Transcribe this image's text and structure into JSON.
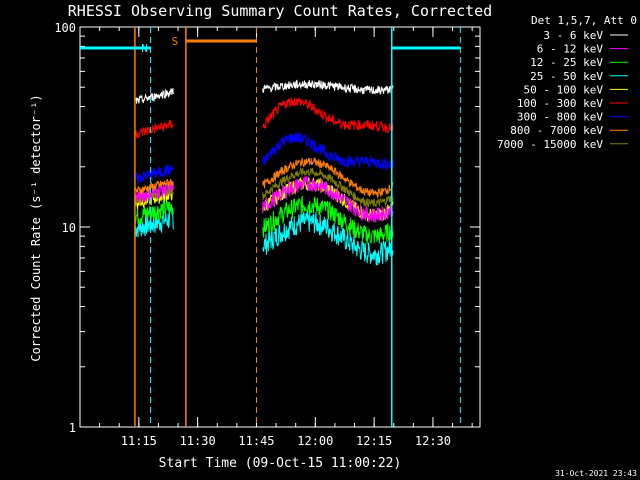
{
  "chart_data": {
    "type": "line",
    "title": "RHESSI Observing Summary Count Rates, Corrected",
    "xlabel": "Start Time (09-Oct-15 11:00:22)",
    "ylabel": "Corrected Count Rate (s⁻¹ detector⁻¹)",
    "y_scale": "log",
    "ylim": [
      1,
      100
    ],
    "xlim_minutes": [
      0,
      102
    ],
    "x_ticks": [
      {
        "label": "11:15",
        "minute": 15
      },
      {
        "label": "11:30",
        "minute": 30
      },
      {
        "label": "11:45",
        "minute": 45
      },
      {
        "label": "12:00",
        "minute": 60
      },
      {
        "label": "12:15",
        "minute": 75
      },
      {
        "label": "12:30",
        "minute": 90
      }
    ],
    "y_ticks": [
      {
        "label": "1",
        "value": 1
      },
      {
        "label": "10",
        "value": 10
      },
      {
        "label": "100",
        "value": 100
      }
    ],
    "legend_header": "Det 1,5,7, Att 0",
    "legend_position": "right, outside plot",
    "series": [
      {
        "name": "3 - 6 keV",
        "color": "#ffffff",
        "level_seg1": 45,
        "level_seg2": 50
      },
      {
        "name": "6 - 12 keV",
        "color": "#ff00ff",
        "level_seg1": 15,
        "level_seg2": 14
      },
      {
        "name": "12 - 25 keV",
        "color": "#00ff00",
        "level_seg1": 12,
        "level_seg2": 11
      },
      {
        "name": "25 - 50 keV",
        "color": "#00ffff",
        "level_seg1": 10.5,
        "level_seg2": 9
      },
      {
        "name": "50 - 100 keV",
        "color": "#ffff00",
        "level_seg1": 14,
        "level_seg2": 14
      },
      {
        "name": "100 - 300 keV",
        "color": "#ff0000",
        "level_seg1": 31,
        "level_seg2": 35
      },
      {
        "name": "300 - 800 keV",
        "color": "#0000ff",
        "level_seg1": 18.5,
        "level_seg2": 23
      },
      {
        "name": "800 - 7000 keV",
        "color": "#ff8000",
        "level_seg1": 16,
        "level_seg2": 18
      },
      {
        "name": "7000 - 15000 keV",
        "color": "#808000",
        "level_seg1": 14.5,
        "level_seg2": 16
      }
    ],
    "segments_minutes": [
      [
        14,
        24
      ],
      [
        46.5,
        80
      ]
    ],
    "annotations": [
      {
        "label": "N",
        "color": "#00ffff",
        "start_minute": 0,
        "end_minute": 18
      },
      {
        "label": "S",
        "color": "#ff8000",
        "start_minute": 27,
        "end_minute": 45
      },
      {
        "label": "",
        "color": "#00ffff",
        "start_minute": 79.5,
        "end_minute": 97
      }
    ],
    "dashed_markers": [
      {
        "minute": 18,
        "color": "#00ffff"
      },
      {
        "minute": 45,
        "color": "#ff8000"
      },
      {
        "minute": 97,
        "color": "#00ffff"
      }
    ],
    "solid_markers": [
      {
        "minute": 14,
        "color": "#ff8000"
      },
      {
        "minute": 27,
        "color": "#ff8000"
      },
      {
        "minute": 79.5,
        "color": "#00ffff"
      }
    ]
  },
  "footer": {
    "timestamp": "31-Oct-2021 23:43"
  }
}
